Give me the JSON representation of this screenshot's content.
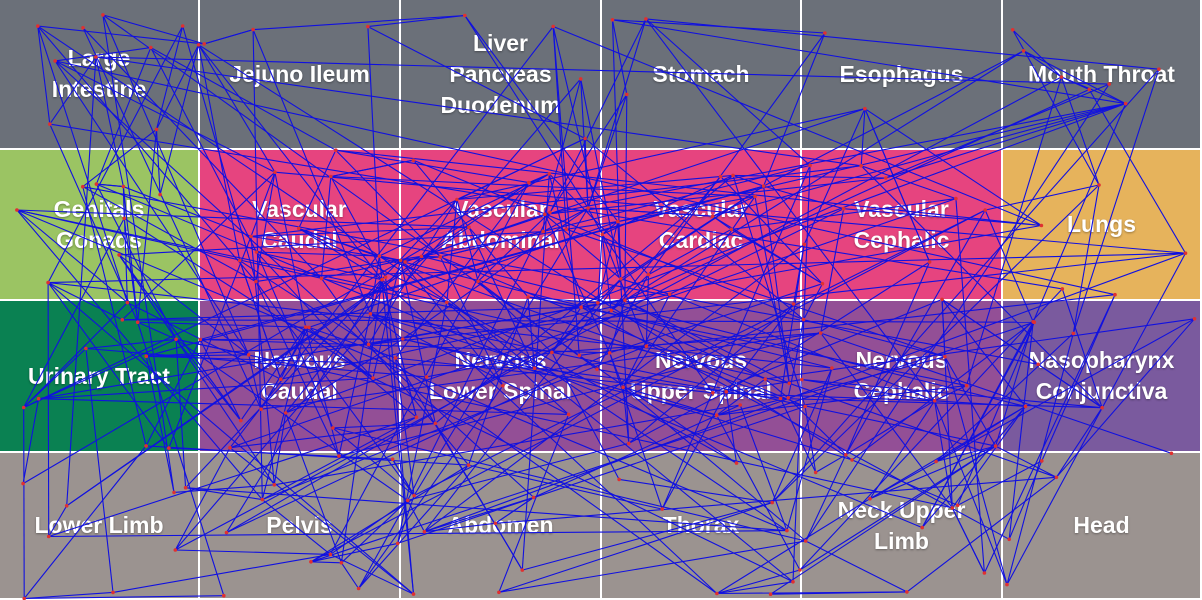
{
  "colors": {
    "gray": "#6b7079",
    "green_light": "#9bc463",
    "pink": "#e6447f",
    "orange": "#e6b35c",
    "green_dark": "#0a8152",
    "purple": "#934f96",
    "purple_light": "#7a5a9e",
    "taupe": "#9b9390",
    "edge": "#1010e0",
    "node": "#e03030"
  },
  "grid": {
    "rows": [
      [
        {
          "id": "large-intestine",
          "label": "Large\nIntestine",
          "color": "gray"
        },
        {
          "id": "jejuno-ileum",
          "label": "Jejuno Ileum",
          "color": "gray"
        },
        {
          "id": "liver-pancreas-duodenum",
          "label": "Liver\nPancreas\nDuodenum",
          "color": "gray"
        },
        {
          "id": "stomach",
          "label": "Stomach",
          "color": "gray"
        },
        {
          "id": "esophagus",
          "label": "Esophagus",
          "color": "gray"
        },
        {
          "id": "mouth-throat",
          "label": "Mouth Throat",
          "color": "gray"
        }
      ],
      [
        {
          "id": "genitals-gonads",
          "label": "Genitals\nGonads",
          "color": "green_light"
        },
        {
          "id": "vascular-caudal",
          "label": "Vascular\nCaudal",
          "color": "pink"
        },
        {
          "id": "vascular-abdominal",
          "label": "Vascular\nAbdominal",
          "color": "pink"
        },
        {
          "id": "vascular-cardiac",
          "label": "Vascular\nCardiac",
          "color": "pink"
        },
        {
          "id": "vascular-cephalic",
          "label": "Vascular\nCephalic",
          "color": "pink"
        },
        {
          "id": "lungs",
          "label": "Lungs",
          "color": "orange"
        }
      ],
      [
        {
          "id": "urinary-tract",
          "label": "Urinary Tract",
          "color": "green_dark"
        },
        {
          "id": "nervous-caudal",
          "label": "Nervous\nCaudal",
          "color": "purple"
        },
        {
          "id": "nervous-lower-spinal",
          "label": "Nervous\nLower Spinal",
          "color": "purple"
        },
        {
          "id": "nervous-upper-spinal",
          "label": "Nervous\nUpper Spinal",
          "color": "purple"
        },
        {
          "id": "nervous-cephalic",
          "label": "Nervous\nCephalic",
          "color": "purple"
        },
        {
          "id": "nasopharynx-conjunctiva",
          "label": "Nasopharynx\nConjunctiva",
          "color": "purple_light"
        }
      ],
      [
        {
          "id": "lower-limb",
          "label": "Lower Limb",
          "color": "taupe"
        },
        {
          "id": "pelvis",
          "label": "Pelvis",
          "color": "taupe"
        },
        {
          "id": "abdomen",
          "label": "Abdomen",
          "color": "taupe"
        },
        {
          "id": "thorax",
          "label": "Thorax",
          "color": "taupe"
        },
        {
          "id": "neck-upper-limb",
          "label": "Neck Upper\nLimb",
          "color": "taupe"
        },
        {
          "id": "head",
          "label": "Head",
          "color": "taupe"
        }
      ]
    ]
  }
}
